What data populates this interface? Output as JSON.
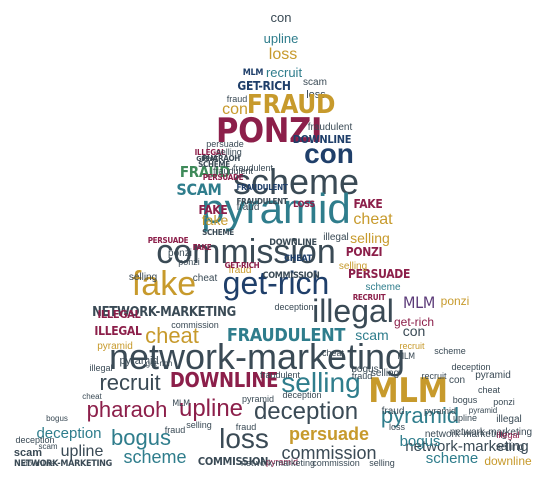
{
  "palette": {
    "slate": "#3a4a55",
    "gold": "#c79a2c",
    "maroon": "#8c1f4a",
    "teal": "#2f7d8c",
    "green": "#3f8a5a",
    "navy": "#1f3f6a",
    "purple": "#5b3a78",
    "olive": "#8a7a2a"
  },
  "word_cloud": {
    "words": [
      {
        "text": "con",
        "color": "slate"
      },
      {
        "text": "upline",
        "color": "teal"
      },
      {
        "text": "loss",
        "color": "gold"
      },
      {
        "text": "MLM",
        "color": "navy"
      },
      {
        "text": "recruit",
        "color": "teal"
      },
      {
        "text": "scam",
        "color": "slate"
      },
      {
        "text": "GET-RICH",
        "color": "navy"
      },
      {
        "text": "loss",
        "color": "slate"
      },
      {
        "text": "FRAUD",
        "color": "gold"
      },
      {
        "text": "con",
        "color": "gold"
      },
      {
        "text": "PONZI",
        "color": "maroon"
      },
      {
        "text": "con",
        "color": "navy"
      },
      {
        "text": "DOWNLINE",
        "color": "navy"
      },
      {
        "text": "scheme",
        "color": "slate"
      },
      {
        "text": "FRAUD",
        "color": "green"
      },
      {
        "text": "SCAM",
        "color": "teal"
      },
      {
        "text": "pyramid",
        "color": "teal"
      },
      {
        "text": "FAKE",
        "color": "maroon"
      },
      {
        "text": "cheat",
        "color": "gold"
      },
      {
        "text": "selling",
        "color": "gold"
      },
      {
        "text": "commission",
        "color": "slate"
      },
      {
        "text": "PONZI",
        "color": "maroon"
      },
      {
        "text": "fake",
        "color": "gold"
      },
      {
        "text": "get-rich",
        "color": "navy"
      },
      {
        "text": "illegal",
        "color": "slate"
      },
      {
        "text": "PERSUADE",
        "color": "maroon"
      },
      {
        "text": "NETWORK-MARKETING",
        "color": "slate"
      },
      {
        "text": "MLM",
        "color": "purple"
      },
      {
        "text": "ILLEGAL",
        "color": "maroon"
      },
      {
        "text": "cheat",
        "color": "gold"
      },
      {
        "text": "FRAUDULENT",
        "color": "teal"
      },
      {
        "text": "scam",
        "color": "teal"
      },
      {
        "text": "con",
        "color": "slate"
      },
      {
        "text": "network-marketing",
        "color": "slate"
      },
      {
        "text": "recruit",
        "color": "slate"
      },
      {
        "text": "DOWNLINE",
        "color": "maroon"
      },
      {
        "text": "selling",
        "color": "teal"
      },
      {
        "text": "MLM",
        "color": "gold"
      },
      {
        "text": "pharaoh",
        "color": "maroon"
      },
      {
        "text": "upline",
        "color": "maroon"
      },
      {
        "text": "deception",
        "color": "slate"
      },
      {
        "text": "pyramid",
        "color": "teal"
      },
      {
        "text": "bogus",
        "color": "teal"
      },
      {
        "text": "loss",
        "color": "slate"
      },
      {
        "text": "persuade",
        "color": "gold"
      },
      {
        "text": "deception",
        "color": "teal"
      },
      {
        "text": "upline",
        "color": "slate"
      },
      {
        "text": "scheme",
        "color": "teal"
      },
      {
        "text": "commission",
        "color": "slate"
      },
      {
        "text": "network-marketing",
        "color": "slate"
      },
      {
        "text": "bogus",
        "color": "teal"
      },
      {
        "text": "scheme",
        "color": "teal"
      },
      {
        "text": "downline",
        "color": "gold"
      },
      {
        "text": "scam",
        "color": "slate"
      },
      {
        "text": "COMMISSION",
        "color": "slate"
      },
      {
        "text": "pyramid",
        "color": "maroon"
      },
      {
        "text": "commission",
        "color": "slate"
      },
      {
        "text": "NETWORK-MARKETING",
        "color": "slate"
      },
      {
        "text": "deception",
        "color": "slate"
      },
      {
        "text": "network-marketing",
        "color": "slate"
      },
      {
        "text": "upline",
        "color": "slate"
      },
      {
        "text": "pyramid",
        "color": "slate"
      },
      {
        "text": "ponzi",
        "color": "gold"
      },
      {
        "text": "get-rich",
        "color": "maroon"
      },
      {
        "text": "illegal",
        "color": "slate"
      },
      {
        "text": "selling",
        "color": "slate"
      },
      {
        "text": "fraud",
        "color": "gold"
      },
      {
        "text": "cheat",
        "color": "slate"
      },
      {
        "text": "ILLEGAL",
        "color": "maroon"
      },
      {
        "text": "COMMISSION",
        "color": "slate"
      },
      {
        "text": "FAKE",
        "color": "maroon"
      },
      {
        "text": "CHEAT",
        "color": "navy"
      },
      {
        "text": "LOSS",
        "color": "maroon"
      },
      {
        "text": "FRAUDULENT",
        "color": "slate"
      },
      {
        "text": "SCHEME",
        "color": "slate"
      },
      {
        "text": "PERSUADE",
        "color": "maroon"
      },
      {
        "text": "RECRUIT",
        "color": "maroon"
      },
      {
        "text": "commission",
        "color": "slate"
      },
      {
        "text": "fraudulent",
        "color": "slate"
      },
      {
        "text": "GET-RICH",
        "color": "maroon"
      },
      {
        "text": "ponzi",
        "color": "slate"
      },
      {
        "text": "deception",
        "color": "slate"
      },
      {
        "text": "scheme",
        "color": "teal"
      },
      {
        "text": "MLM",
        "color": "slate"
      },
      {
        "text": "cheat",
        "color": "slate"
      },
      {
        "text": "selling",
        "color": "gold"
      },
      {
        "text": "fraudulent",
        "color": "slate"
      },
      {
        "text": "illegal",
        "color": "slate"
      },
      {
        "text": "persuade",
        "color": "slate"
      },
      {
        "text": "fraud",
        "color": "slate"
      },
      {
        "text": "pyramid",
        "color": "gold"
      },
      {
        "text": "FAKE",
        "color": "maroon"
      },
      {
        "text": "fraud",
        "color": "slate"
      },
      {
        "text": "fake",
        "color": "gold"
      },
      {
        "text": "ponzi",
        "color": "slate"
      },
      {
        "text": "bogus",
        "color": "slate"
      },
      {
        "text": "deception",
        "color": "slate"
      },
      {
        "text": "selling",
        "color": "slate"
      },
      {
        "text": "illegal",
        "color": "slate"
      },
      {
        "text": "fraudulent",
        "color": "slate"
      },
      {
        "text": "fraud",
        "color": "slate"
      },
      {
        "text": "PHARAOH",
        "color": "slate"
      },
      {
        "text": "SCHEME",
        "color": "slate"
      },
      {
        "text": "ILLEGAL",
        "color": "maroon"
      },
      {
        "text": "GREAT",
        "color": "slate"
      },
      {
        "text": "selling",
        "color": "slate"
      },
      {
        "text": "FRAUDULENT",
        "color": "navy"
      },
      {
        "text": "fraudulent",
        "color": "slate"
      },
      {
        "text": "PERSUADE",
        "color": "maroon"
      },
      {
        "text": "DOWNLINE",
        "color": "slate"
      },
      {
        "text": "recruit",
        "color": "gold"
      },
      {
        "text": "pyramid",
        "color": "slate"
      },
      {
        "text": "bogus",
        "color": "slate"
      },
      {
        "text": "cheat",
        "color": "slate"
      },
      {
        "text": "con",
        "color": "slate"
      },
      {
        "text": "pyramid",
        "color": "slate"
      },
      {
        "text": "pyramid",
        "color": "slate"
      },
      {
        "text": "network-marketing",
        "color": "slate"
      },
      {
        "text": "loss",
        "color": "slate"
      },
      {
        "text": "fraud",
        "color": "slate"
      },
      {
        "text": "ponzi",
        "color": "slate"
      },
      {
        "text": "illegal",
        "color": "maroon"
      },
      {
        "text": "selling",
        "color": "slate"
      },
      {
        "text": "downline",
        "color": "slate"
      },
      {
        "text": "scam",
        "color": "slate"
      },
      {
        "text": "bogus",
        "color": "slate"
      },
      {
        "text": "cheat",
        "color": "slate"
      },
      {
        "text": "get-rich",
        "color": "slate"
      },
      {
        "text": "MLM",
        "color": "slate"
      },
      {
        "text": "fraud",
        "color": "slate"
      },
      {
        "text": "selling",
        "color": "slate"
      },
      {
        "text": "fraud",
        "color": "slate"
      },
      {
        "text": "pyramid",
        "color": "slate"
      },
      {
        "text": "network-marketing",
        "color": "slate"
      },
      {
        "text": "selling",
        "color": "slate"
      },
      {
        "text": "recruit",
        "color": "slate"
      },
      {
        "text": "deception",
        "color": "slate"
      },
      {
        "text": "scheme",
        "color": "slate"
      }
    ]
  }
}
